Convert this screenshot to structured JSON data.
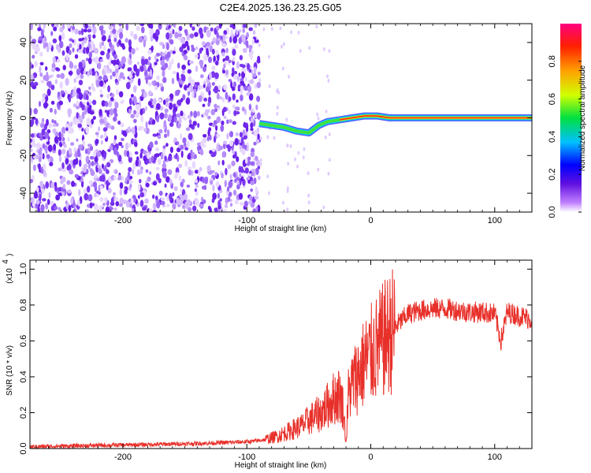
{
  "title": "C2E4.2025.136.23.25.G05",
  "chart_data": [
    {
      "type": "heatmap",
      "xlabel": "Height of straight line (km)",
      "ylabel": "Frequency (Hz)",
      "xlim": [
        -275,
        130
      ],
      "ylim": [
        -50,
        50
      ],
      "x_ticks": [
        -200,
        -100,
        0,
        100
      ],
      "y_ticks": [
        -40,
        -20,
        0,
        20,
        40
      ],
      "x_tick_labels": [
        "-200",
        "-100",
        "0",
        "100"
      ],
      "y_tick_labels": [
        "-40",
        "-20",
        "0",
        "20",
        "40"
      ],
      "colorbar": {
        "label": "Normalized spectral amplitude",
        "range": [
          0.0,
          1.0
        ],
        "ticks": [
          0.0,
          0.2,
          0.4,
          0.6,
          0.8
        ],
        "tick_labels": [
          "0.0",
          "0.2",
          "0.4",
          "0.6",
          "0.8"
        ],
        "colormap": [
          "#ffffff",
          "#c080ff",
          "#6010e0",
          "#0000ff",
          "#00c0ff",
          "#00e040",
          "#d0ff00",
          "#ffa000",
          "#ff2000",
          "#ff0080"
        ]
      },
      "noise_region_x": [
        -275,
        -90
      ],
      "signal_track": [
        {
          "x": -90,
          "y": -3
        },
        {
          "x": -80,
          "y": -4
        },
        {
          "x": -70,
          "y": -5
        },
        {
          "x": -60,
          "y": -7
        },
        {
          "x": -50,
          "y": -8
        },
        {
          "x": -42,
          "y": -4
        },
        {
          "x": -35,
          "y": -2
        },
        {
          "x": -25,
          "y": -1
        },
        {
          "x": -15,
          "y": 0
        },
        {
          "x": -5,
          "y": 1
        },
        {
          "x": 5,
          "y": 1
        },
        {
          "x": 15,
          "y": 0
        },
        {
          "x": 130,
          "y": 0
        }
      ]
    },
    {
      "type": "line",
      "xlabel": "Height of straight line (km)",
      "ylabel": "SNR (10 * v/v)",
      "y_scale_label": "(x10",
      "y_scale_exp": "4",
      "xlim": [
        -275,
        130
      ],
      "ylim": [
        0.0,
        1.05
      ],
      "x_ticks": [
        -200,
        -100,
        0,
        100
      ],
      "y_ticks": [
        0.0,
        0.2,
        0.4,
        0.6,
        0.8,
        1.0
      ],
      "x_tick_labels": [
        "-200",
        "-100",
        "0",
        "100"
      ],
      "y_tick_labels": [
        "0.0",
        "0.2",
        "0.4",
        "0.6",
        "0.8",
        "1.0"
      ],
      "color": "#e8302a",
      "series": [
        {
          "x": [
            -275,
            -240,
            -200,
            -160,
            -130,
            -110,
            -95,
            -85,
            -75,
            -65,
            -55,
            -50,
            -45,
            -40,
            -35,
            -30,
            -25,
            -22,
            -20,
            -18,
            -15,
            -10,
            -5,
            0,
            5,
            10,
            20,
            30,
            40,
            50,
            60,
            70,
            80,
            90,
            100,
            105,
            110,
            120,
            130
          ],
          "y": [
            0.01,
            0.015,
            0.02,
            0.025,
            0.03,
            0.035,
            0.04,
            0.05,
            0.07,
            0.1,
            0.13,
            0.16,
            0.18,
            0.2,
            0.24,
            0.28,
            0.3,
            0.22,
            0.03,
            0.3,
            0.36,
            0.42,
            0.48,
            0.52,
            0.56,
            0.6,
            0.68,
            0.75,
            0.77,
            0.78,
            0.78,
            0.77,
            0.76,
            0.76,
            0.75,
            0.6,
            0.76,
            0.74,
            0.72
          ]
        }
      ]
    }
  ]
}
